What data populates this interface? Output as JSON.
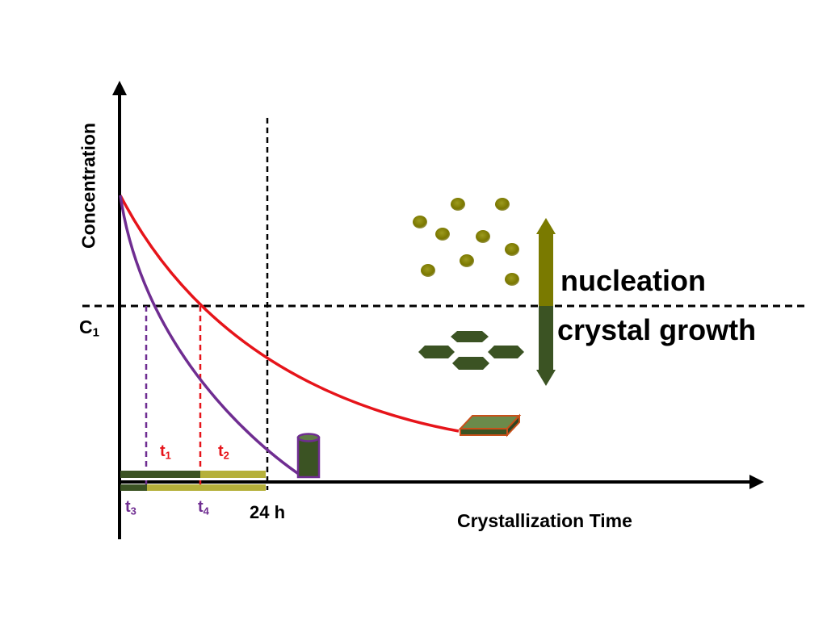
{
  "labels": {
    "y_axis": "Concentration",
    "x_axis": "Crystallization Time",
    "c1_main": "C",
    "c1_sub": "1",
    "nucleation": "nucleation",
    "crystal_growth": "crystal growth",
    "t1_main": "t",
    "t1_sub": "1",
    "t2_main": "t",
    "t2_sub": "2",
    "t3_main": "t",
    "t3_sub": "3",
    "t4_main": "t",
    "t4_sub": "4",
    "time_24h": "24 h"
  },
  "colors": {
    "red_curve": "#e6141a",
    "purple_curve": "#6f2d91",
    "nucleation": "#7a7a00",
    "growth": "#3b5323",
    "olive_bar": "#b5b03a",
    "axis": "#000000"
  },
  "icons": [
    "nuclei-dots",
    "crystal-hexagons",
    "plate-crystal",
    "rod-crystal",
    "nucleation-growth-arrow"
  ]
}
